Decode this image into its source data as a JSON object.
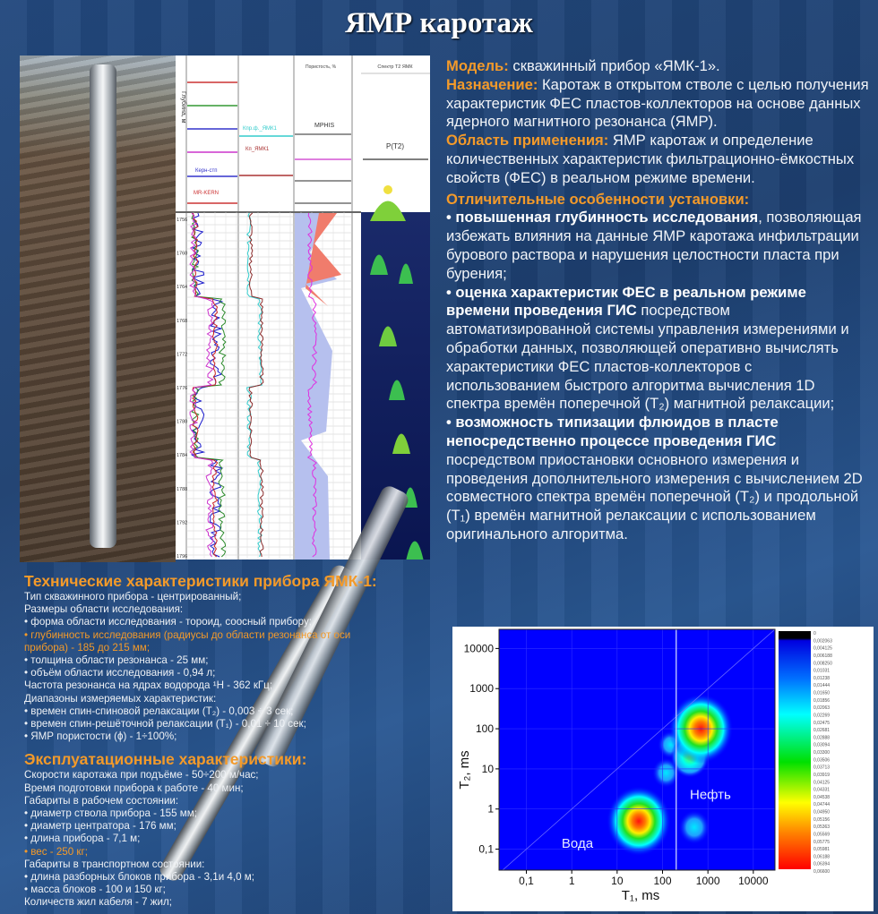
{
  "title": "ЯМР каротаж",
  "log": {
    "depth_label": "Глубина, м",
    "columns": [
      "Пористость, %",
      "Спектр T2 ЯМК"
    ],
    "curve_labels": [
      "Керн-стп",
      "MR-KERN",
      "Кпр.ф._ЯМК1",
      "Кп_ЯМК1",
      "MPHIS",
      "P(T2)"
    ],
    "depths": [
      "1756",
      "1760",
      "1764",
      "1768",
      "1772",
      "1776",
      "1780",
      "1784",
      "1788",
      "1792",
      "1796"
    ]
  },
  "right": {
    "model_label": "Модель:",
    "model_text": " скважинный прибор «ЯМК-1».",
    "purpose_label": "Назначение:",
    "purpose_text": " Каротаж в открытом стволе с целью получения характеристик ФЕС пластов-коллекторов на основе данных ядерного магнитного резонанса (ЯМР).",
    "area_label": "Область применения:",
    "area_text": " ЯМР каротаж и определение количественных характеристик фильтрационно-ёмкостных свойств (ФЕС) в реальном режиме времени.",
    "features_heading": "Отличительные особенности установки:",
    "f1_bold": "• повышенная глубинность исследования",
    "f1_text": ", позволяющая избежать влияния на данные ЯМР каротажа инфильтрации бурового раствора и нарушения целостности пласта при бурения;",
    "f2_bold": "• оценка характеристик ФЕС в реальном режиме времени проведения ГИС",
    "f2_text": " посредством автоматизированной системы управления измерениями и обработки данных, позволяющей оперативно  вычислять характеристики ФЕС пластов-коллекторов с использованием быстрого алгоритма  вычисления 1D спектра времён поперечной (T₂) магнитной релаксации;",
    "f3_bold": "• возможность типизации флюидов в пласте непосредственно процессе проведения ГИС",
    "f3_text": " посредством приостановки основного измерения и проведения дополнительного измерения с вычислением 2D совместного спектра времён поперечной (T₂) и продольной (T₁)  времён магнитной релаксации с использованием оригинального алгоритма."
  },
  "tech": {
    "heading": "Технические характеристики прибора ЯМК-1:",
    "lines": [
      {
        "t": "Тип скважинного прибора - центрированный;",
        "hl": false
      },
      {
        "t": "Размеры области исследования:",
        "hl": false
      },
      {
        "t": "• форма области исследования - тороид, соосный прибору;",
        "hl": false
      },
      {
        "t": "• глубинность исследования (радиусы до области резонанса от оси",
        "hl": true
      },
      {
        "t": "прибора) - 185 до 215 мм;",
        "hl": true
      },
      {
        "t": "• толщина области резонанса - 25 мм;",
        "hl": false
      },
      {
        "t": "• объём области исследования - 0,94 л;",
        "hl": false
      },
      {
        "t": "Частота резонанса на ядрах водорода ¹H - 362 кГц;",
        "hl": false
      },
      {
        "t": "Диапазоны измеряемых характеристик:",
        "hl": false
      },
      {
        "t": "• времен спин-спиновой релаксации (T₂) - 0,003 ÷ 3 сек;",
        "hl": false
      },
      {
        "t": "• времен спин-решёточной релаксации (T₁) - 0,01 ÷ 10 сек;",
        "hl": false
      },
      {
        "t": "• ЯМР пористости (ϕ) - 1÷100%;",
        "hl": false
      }
    ]
  },
  "ops": {
    "heading": "Эксплуатационные характеристики:",
    "lines": [
      {
        "t": "Скорости каротажа при подъёме - 50÷200 м/час;",
        "hl": false
      },
      {
        "t": "Время подготовки прибора к работе - 40 мин;",
        "hl": false
      },
      {
        "t": "Габариты в рабочем состоянии:",
        "hl": false
      },
      {
        "t": "• диаметр ствола прибора - 155 мм;",
        "hl": false
      },
      {
        "t": "• диаметр центратора - 176 мм;",
        "hl": false
      },
      {
        "t": "• длина прибора - 7,1 м;",
        "hl": false
      },
      {
        "t": "• вес - 250 кг;",
        "hl": true
      },
      {
        "t": "Габариты в транспортном состоянии:",
        "hl": false
      },
      {
        "t": "• длина разборных блоков прибора - 3,1и 4,0 м;",
        "hl": false
      },
      {
        "t": "• масса блоков - 100 и 150 кг;",
        "hl": false
      },
      {
        "t": "Количеств жил кабеля - 7 жил;",
        "hl": false
      }
    ]
  },
  "chart_data": {
    "type": "heatmap",
    "title": "",
    "xlabel": "T₁,  ms",
    "ylabel": "T₂, ms",
    "xscale": "log",
    "yscale": "log",
    "xlim": [
      0.025,
      30000
    ],
    "ylim": [
      0.03,
      30000
    ],
    "xticks": [
      "0,1",
      "1",
      "10",
      "100",
      "1000",
      "10000"
    ],
    "yticks": [
      "0,1",
      "1",
      "10",
      "100",
      "1000",
      "10000"
    ],
    "xtick_values": [
      0.1,
      1,
      10,
      100,
      1000,
      10000
    ],
    "ytick_values": [
      0.1,
      1,
      10,
      100,
      1000,
      10000
    ],
    "cutoff_t1": 200,
    "diagonal": "T1 = T2",
    "peaks": [
      {
        "t1": 30,
        "t2": 0.5,
        "level": 0.066
      },
      {
        "t1": 700,
        "t2": 100,
        "level": 0.066
      },
      {
        "t1": 400,
        "t2": 20,
        "level": 0.03
      },
      {
        "t1": 500,
        "t2": 0.35,
        "level": 0.02
      },
      {
        "t1": 120,
        "t2": 8,
        "level": 0.015
      },
      {
        "t1": 150,
        "t2": 40,
        "level": 0.012
      }
    ],
    "annotations": [
      "Вода",
      "Нефть"
    ],
    "colorbar": [
      "0",
      "0,002063",
      "0,004125",
      "0,006188",
      "0,008250",
      "0,01031",
      "0,01238",
      "0,01444",
      "0,01650",
      "0,01856",
      "0,02063",
      "0,02269",
      "0,02475",
      "0,02681",
      "0,02888",
      "0,03094",
      "0,03300",
      "0,03506",
      "0,03713",
      "0,03919",
      "0,04125",
      "0,04331",
      "0,04538",
      "0,04744",
      "0,04950",
      "0,05156",
      "0,05363",
      "0,05569",
      "0,05775",
      "0,05981",
      "0,06188",
      "0,06394",
      "0,06600"
    ],
    "colors": {
      "background": "#0000ff",
      "peak": "#ff0000"
    }
  }
}
